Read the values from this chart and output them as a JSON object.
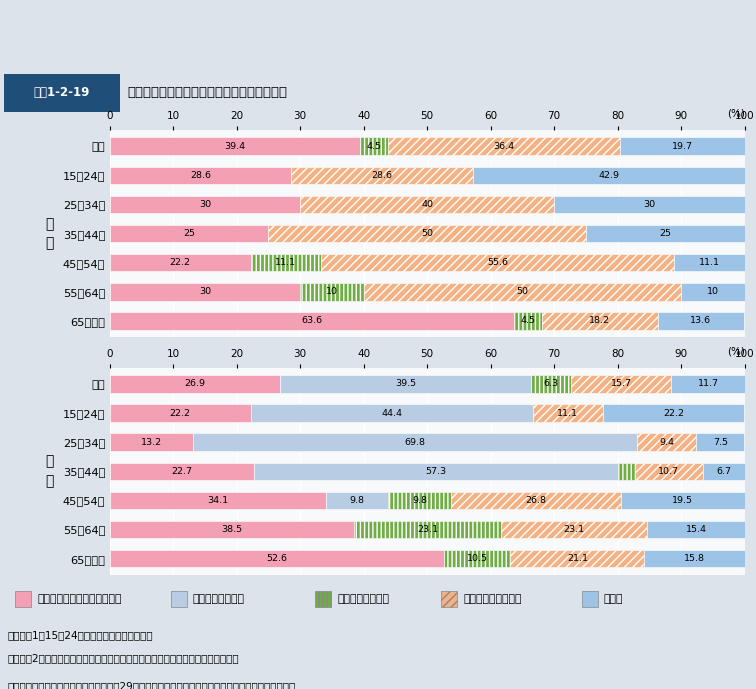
{
  "title_box": "図表1-2-19",
  "title_text": "就業を希望していながら求職していない理由",
  "percent_label": "(%)",
  "male_label": "男\n性",
  "female_label": "女\n性",
  "male_categories": [
    "総数",
    "15～24歳",
    "25～34歳",
    "35～44歳",
    "45～54歳",
    "55～64歳",
    "65歳以上"
  ],
  "female_categories": [
    "総数",
    "15～24歳",
    "25～34歳",
    "35～44歳",
    "45～54歳",
    "55～64歳",
    "65歳以上"
  ],
  "legend_labels": [
    "適当な仕事がありそうにない",
    "出産・育児のため",
    "介護・看護のため",
    "健康上の理由のため",
    "その他"
  ],
  "male_data": [
    [
      39.4,
      0.0,
      4.5,
      36.4,
      19.7
    ],
    [
      28.6,
      0.0,
      0.0,
      28.6,
      42.9
    ],
    [
      30.0,
      0.0,
      0.0,
      40.0,
      30.0
    ],
    [
      25.0,
      0.0,
      0.0,
      50.0,
      25.0
    ],
    [
      22.2,
      0.0,
      11.1,
      55.6,
      11.1
    ],
    [
      30.0,
      0.0,
      10.0,
      50.0,
      10.0
    ],
    [
      63.6,
      0.0,
      4.5,
      18.2,
      13.6
    ]
  ],
  "female_data": [
    [
      26.9,
      39.5,
      6.3,
      15.7,
      11.7
    ],
    [
      22.2,
      44.4,
      0.0,
      11.1,
      22.2
    ],
    [
      13.2,
      69.8,
      0.0,
      9.4,
      7.5
    ],
    [
      22.7,
      57.3,
      2.7,
      10.7,
      6.7
    ],
    [
      34.1,
      9.8,
      9.8,
      26.8,
      19.5
    ],
    [
      38.5,
      0.0,
      23.1,
      23.1,
      15.4
    ],
    [
      52.6,
      0.0,
      10.5,
      21.1,
      15.8
    ]
  ],
  "colors": [
    "#f4a0b4",
    "#b8cce4",
    "#70ad47",
    "#f4b183",
    "#9dc3e6"
  ],
  "hatch_patterns": [
    "",
    "",
    "||||",
    "////",
    "===="
  ],
  "bar_height": 0.6,
  "xticks": [
    0,
    10,
    20,
    30,
    40,
    50,
    60,
    70,
    80,
    90,
    100
  ],
  "bg_color": "#dce3ea",
  "panel_bg": "#edf2f7",
  "chart_face": "#f7f9fb",
  "note_line1": "（注）　1．15～24歳は、在学中の者を除く。",
  "note_line2": "　　　　2．各非求職理由の人数を、各非求職理由の人数の合計値で除したもの。",
  "source": "資料：総務省統計局「労働力調査（平成29年平均）」より厚生労働省政策統括官付政策評価官室作成"
}
